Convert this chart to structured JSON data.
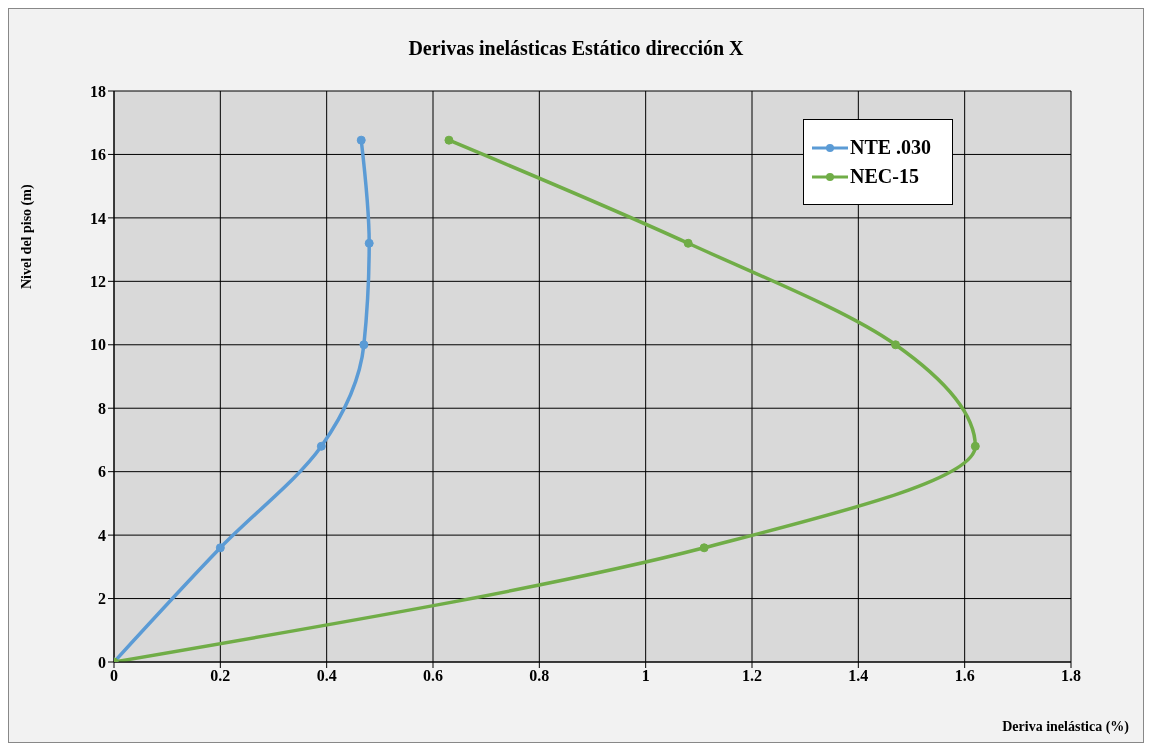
{
  "chart_data": {
    "type": "line",
    "title": "Derivas inelásticas Estático dirección X",
    "xlabel": "Deriva inelástica (%)",
    "ylabel": "Nivel del piso (m)",
    "series": [
      {
        "name": "NTE .030",
        "color": "#5b9bd5",
        "x": [
          0,
          0.2,
          0.39,
          0.47,
          0.48,
          0.465
        ],
        "values": [
          0,
          3.6,
          6.8,
          10,
          13.2,
          16.45
        ]
      },
      {
        "name": "NEC-15",
        "color": "#70ad47",
        "x": [
          0,
          1.11,
          1.62,
          1.47,
          1.08,
          0.63
        ],
        "values": [
          0,
          3.6,
          6.8,
          10,
          13.2,
          16.45
        ]
      }
    ],
    "xlim": [
      0,
      1.8
    ],
    "xticks": [
      0,
      0.2,
      0.4,
      0.6,
      0.8,
      1,
      1.2,
      1.4,
      1.6,
      1.8
    ],
    "ylim": [
      0,
      18
    ],
    "yticks": [
      0,
      2,
      4,
      6,
      8,
      10,
      12,
      14,
      16,
      18
    ],
    "grid": true,
    "legend": "top right",
    "marker": "circle"
  }
}
